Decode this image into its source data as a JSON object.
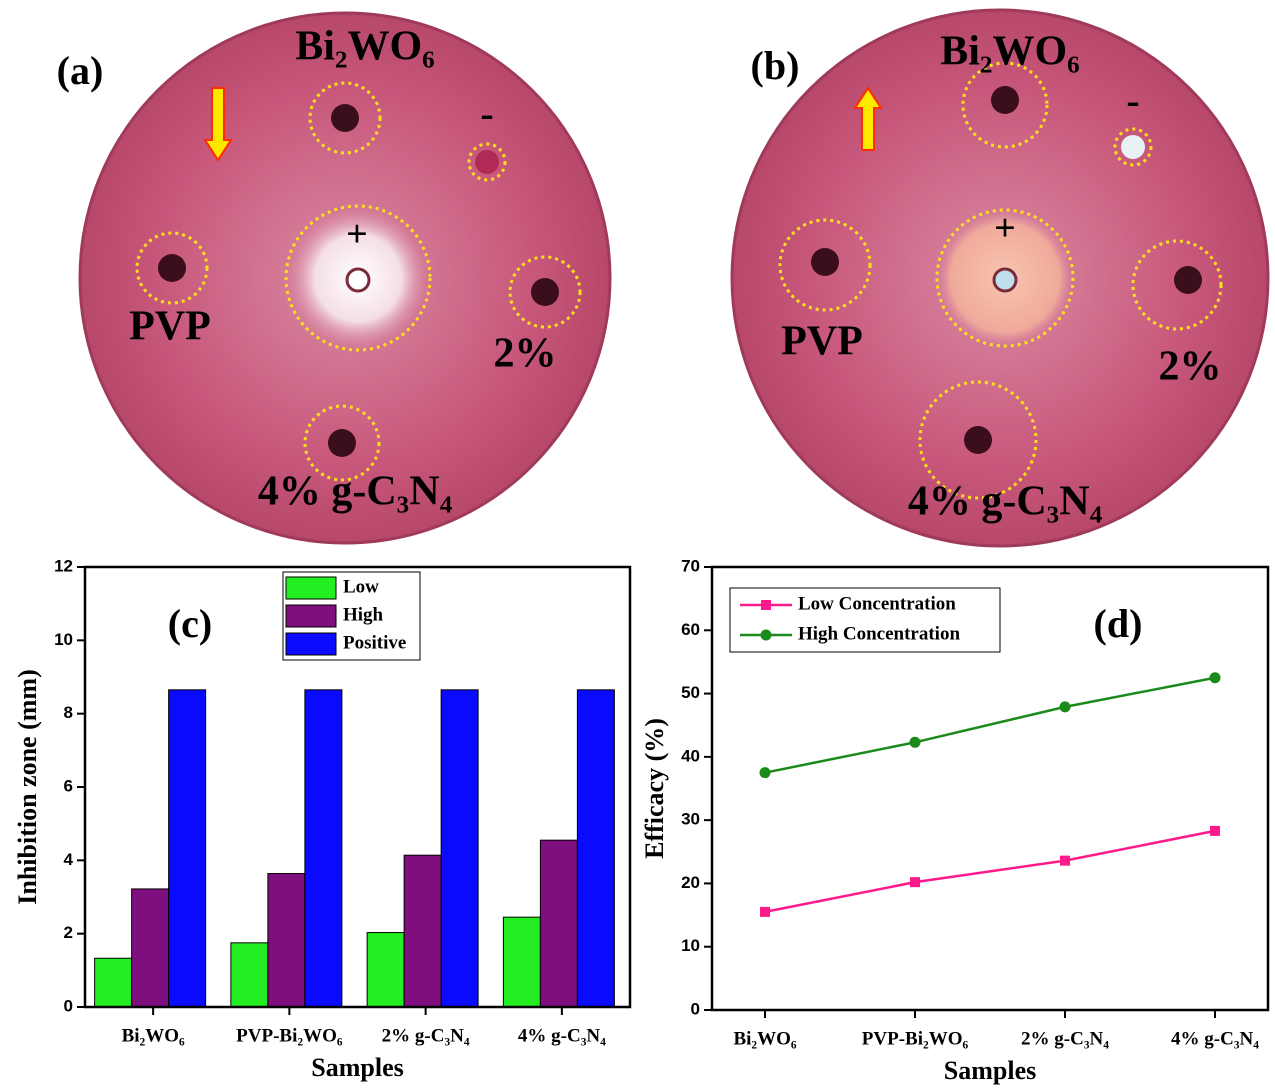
{
  "panels": [
    {
      "label": "(a)",
      "texts": [
        "Bi₂WO₆",
        "-",
        "+",
        "PVP",
        "2%",
        "4% g-C₃N₄"
      ]
    },
    {
      "label": "(b)",
      "texts": [
        "Bi₂WO₆",
        "-",
        "+",
        "PVP",
        "2%",
        "4% g-C₃N₄"
      ]
    }
  ],
  "chart_data": [
    {
      "type": "bar",
      "panel_label": "(c)",
      "xlabel": "Samples",
      "ylabel": "Inhibition zone (mm)",
      "categories": [
        "Bi₂WO₆",
        "PVP-Bi₂WO₆",
        "2% g-C₃N₄",
        "4% g-C₃N₄"
      ],
      "series": [
        {
          "name": "Low",
          "color": "#22ee22",
          "values": [
            1.33,
            1.75,
            2.03,
            2.45
          ]
        },
        {
          "name": "High",
          "color": "#7f0f7f",
          "values": [
            3.22,
            3.64,
            4.14,
            4.55
          ]
        },
        {
          "name": "Positive",
          "color": "#0a0aff",
          "values": [
            8.65,
            8.65,
            8.65,
            8.65
          ]
        }
      ],
      "ylim": [
        0,
        12
      ],
      "yticks": [
        0,
        2,
        4,
        6,
        8,
        10,
        12
      ],
      "legend": "upper center"
    },
    {
      "type": "line",
      "panel_label": "(d)",
      "xlabel": "Samples",
      "ylabel": "Efficacy (%)",
      "categories": [
        "Bi₂WO₆",
        "PVP-Bi₂WO₆",
        "2% g-C₃N₄",
        "4% g-C₃N₄"
      ],
      "series": [
        {
          "name": "Low Concentration",
          "color": "#ff1a8c",
          "marker": "square",
          "values": [
            15.5,
            20.2,
            23.6,
            28.3
          ]
        },
        {
          "name": "High Concentration",
          "color": "#1a8a1a",
          "marker": "circle",
          "values": [
            37.5,
            42.3,
            47.9,
            52.5
          ]
        }
      ],
      "ylim": [
        0,
        70
      ],
      "yticks": [
        0,
        10,
        20,
        30,
        40,
        50,
        60,
        70
      ],
      "legend": "upper left"
    }
  ]
}
